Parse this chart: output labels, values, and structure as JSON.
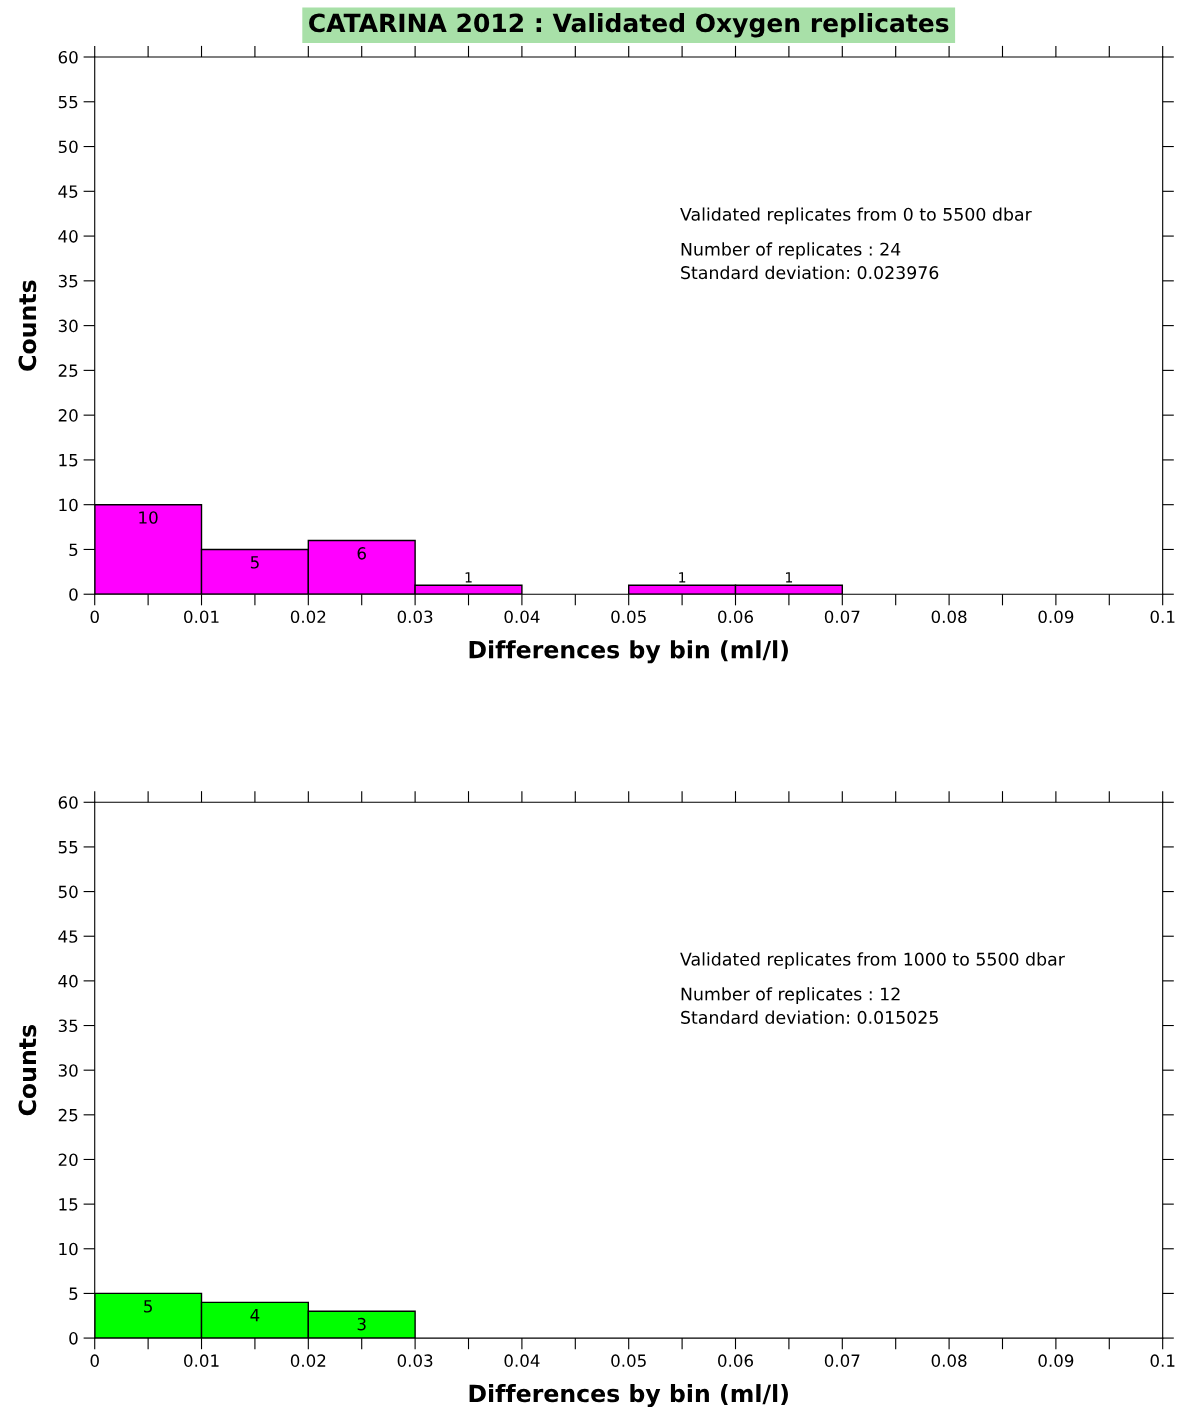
{
  "chart_data": [
    {
      "type": "histogram",
      "title": "CATARINA 2012 : Validated Oxygen replicates",
      "xlabel": "Differences by bin (ml/l)",
      "ylabel": "Counts",
      "bins": [
        0,
        0.01,
        0.02,
        0.03,
        0.04,
        0.05,
        0.06,
        0.07,
        0.08,
        0.09,
        0.1
      ],
      "values": [
        10,
        5,
        6,
        1,
        0,
        1,
        1,
        0,
        0,
        0
      ],
      "value_labels": [
        "10",
        "5",
        "6",
        "1",
        null,
        "1",
        "1",
        null,
        null,
        null
      ],
      "color": "#ff00ff",
      "xlim": [
        0,
        0.1
      ],
      "ylim": [
        0,
        60
      ],
      "xticks": [
        0,
        {
          "value": 0.005,
          "label": null
        },
        0.01,
        {
          "value": 0.015,
          "label": null
        },
        0.02,
        {
          "value": 0.025,
          "label": null
        },
        0.03,
        {
          "value": 0.035,
          "label": null
        },
        0.04,
        {
          "value": 0.045,
          "label": null
        },
        0.05,
        {
          "value": 0.055,
          "label": null
        },
        0.06,
        {
          "value": 0.065,
          "label": null
        },
        0.07,
        {
          "value": 0.075,
          "label": null
        },
        0.08,
        {
          "value": 0.085,
          "label": null
        },
        0.09,
        {
          "value": 0.095,
          "label": null
        },
        0.1
      ],
      "yticks": [
        0,
        5,
        10,
        15,
        20,
        25,
        30,
        35,
        40,
        45,
        50,
        55,
        60
      ],
      "grid": false,
      "annotations": [
        "Validated replicates from 0 to 5500 dbar",
        "Number of replicates : 24\nStandard deviation: 0.023976"
      ]
    },
    {
      "type": "histogram",
      "xlabel": "Differences by bin (ml/l)",
      "ylabel": "Counts",
      "bins": [
        0,
        0.01,
        0.02,
        0.03,
        0.04,
        0.05,
        0.06,
        0.07,
        0.08,
        0.09,
        0.1
      ],
      "values": [
        5,
        4,
        3,
        0,
        0,
        0,
        0,
        0,
        0,
        0
      ],
      "value_labels": [
        "5",
        "4",
        "3",
        null,
        null,
        null,
        null,
        null,
        null,
        null
      ],
      "color": "#00ff00",
      "xlim": [
        0,
        0.1
      ],
      "ylim": [
        0,
        60
      ],
      "xticks": [
        0,
        {
          "value": 0.005,
          "label": null
        },
        0.01,
        {
          "value": 0.015,
          "label": null
        },
        0.02,
        {
          "value": 0.025,
          "label": null
        },
        0.03,
        {
          "value": 0.035,
          "label": null
        },
        0.04,
        {
          "value": 0.045,
          "label": null
        },
        0.05,
        {
          "value": 0.055,
          "label": null
        },
        0.06,
        {
          "value": 0.065,
          "label": null
        },
        0.07,
        {
          "value": 0.075,
          "label": null
        },
        0.08,
        {
          "value": 0.085,
          "label": null
        },
        0.09,
        {
          "value": 0.095,
          "label": null
        },
        0.1
      ],
      "yticks": [
        0,
        5,
        10,
        15,
        20,
        25,
        30,
        35,
        40,
        45,
        50,
        55,
        60
      ],
      "grid": false,
      "annotations": [
        "Validated replicates from 1000 to 5500 dbar",
        "Number of replicates : 12\nStandard deviation: 0.015025"
      ]
    }
  ]
}
